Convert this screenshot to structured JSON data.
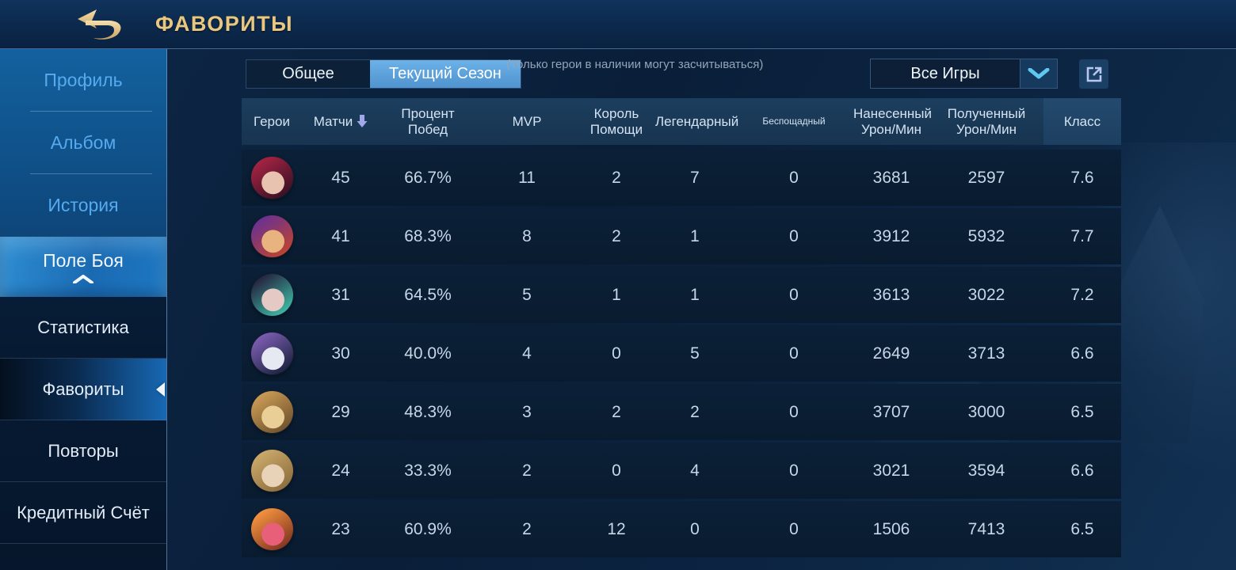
{
  "topbar": {
    "title": "ФАВОРИТЫ",
    "back_icon": "back-return-arrow"
  },
  "colors": {
    "title_gold": "#e9c77f",
    "tab_active_blue": "#5b9fdb",
    "sidebar_link_blue": "#56aaee",
    "selected_gradient_blue": "#1768b4",
    "sort_arrow_lavender": "#9fa8e8",
    "chevron_cyan": "#5ec8f0"
  },
  "sidebar": {
    "top_items": [
      {
        "label": "Профиль"
      },
      {
        "label": "Альбом"
      },
      {
        "label": "История"
      }
    ],
    "parent_item": {
      "label": "Поле Боя",
      "expanded": true
    },
    "sub_items": [
      {
        "label": "Статистика",
        "selected": false
      },
      {
        "label": "Фавориты",
        "selected": true
      },
      {
        "label": "Повторы",
        "selected": false
      },
      {
        "label": "Кредитный Счёт",
        "selected": false
      }
    ]
  },
  "controls": {
    "tabs": [
      {
        "label": "Общее",
        "selected": false
      },
      {
        "label": "Текущий Сезон",
        "selected": true
      }
    ],
    "note": "(Только герои в наличии могут засчитываться)",
    "filter_dropdown": {
      "value": "Все Игры",
      "chevron_icon": "chevron-down-icon"
    },
    "share_icon": "external-link-icon"
  },
  "table": {
    "headers": [
      "Герои",
      "Матчи",
      "Процент\nПобед",
      "MVP",
      "Король\nПомощи",
      "Легендарный",
      "Беспощадный",
      "Нанесенный\nУрон/Мин",
      "Полученный\nУрон/Мин",
      "Класс"
    ],
    "sorted_by": "Матчи",
    "sort_direction": "desc",
    "rows": [
      {
        "hero": "hero-1",
        "avatar_colors": [
          "#a32343",
          "#e7c3b0",
          "#331022"
        ],
        "cells": [
          "45",
          "66.7%",
          "11",
          "2",
          "7",
          "0",
          "3681",
          "2597",
          "7.6"
        ]
      },
      {
        "hero": "hero-2",
        "avatar_colors": [
          "#6b3190",
          "#e8b37e",
          "#c2452a"
        ],
        "cells": [
          "41",
          "68.3%",
          "8",
          "2",
          "1",
          "0",
          "3912",
          "5932",
          "7.7"
        ]
      },
      {
        "hero": "hero-3",
        "avatar_colors": [
          "#262640",
          "#e4c9c4",
          "#3ec2aa"
        ],
        "cells": [
          "31",
          "64.5%",
          "5",
          "1",
          "1",
          "0",
          "3613",
          "3022",
          "7.2"
        ]
      },
      {
        "hero": "hero-4",
        "avatar_colors": [
          "#7b5cb0",
          "#e6e9f2",
          "#17203a"
        ],
        "cells": [
          "30",
          "40.0%",
          "4",
          "0",
          "5",
          "0",
          "2649",
          "3713",
          "6.6"
        ]
      },
      {
        "hero": "hero-5",
        "avatar_colors": [
          "#c99a55",
          "#e9cf96",
          "#6b4e2a"
        ],
        "cells": [
          "29",
          "48.3%",
          "3",
          "2",
          "2",
          "0",
          "3707",
          "3000",
          "6.5"
        ]
      },
      {
        "hero": "hero-6",
        "avatar_colors": [
          "#c9a86a",
          "#e8d2b8",
          "#8a6a3a"
        ],
        "cells": [
          "24",
          "33.3%",
          "2",
          "0",
          "4",
          "0",
          "3021",
          "3594",
          "6.6"
        ]
      },
      {
        "hero": "hero-7",
        "avatar_colors": [
          "#f2913e",
          "#e85f7a",
          "#7a3020"
        ],
        "cells": [
          "23",
          "60.9%",
          "2",
          "12",
          "0",
          "0",
          "1506",
          "7413",
          "6.5"
        ]
      }
    ]
  }
}
